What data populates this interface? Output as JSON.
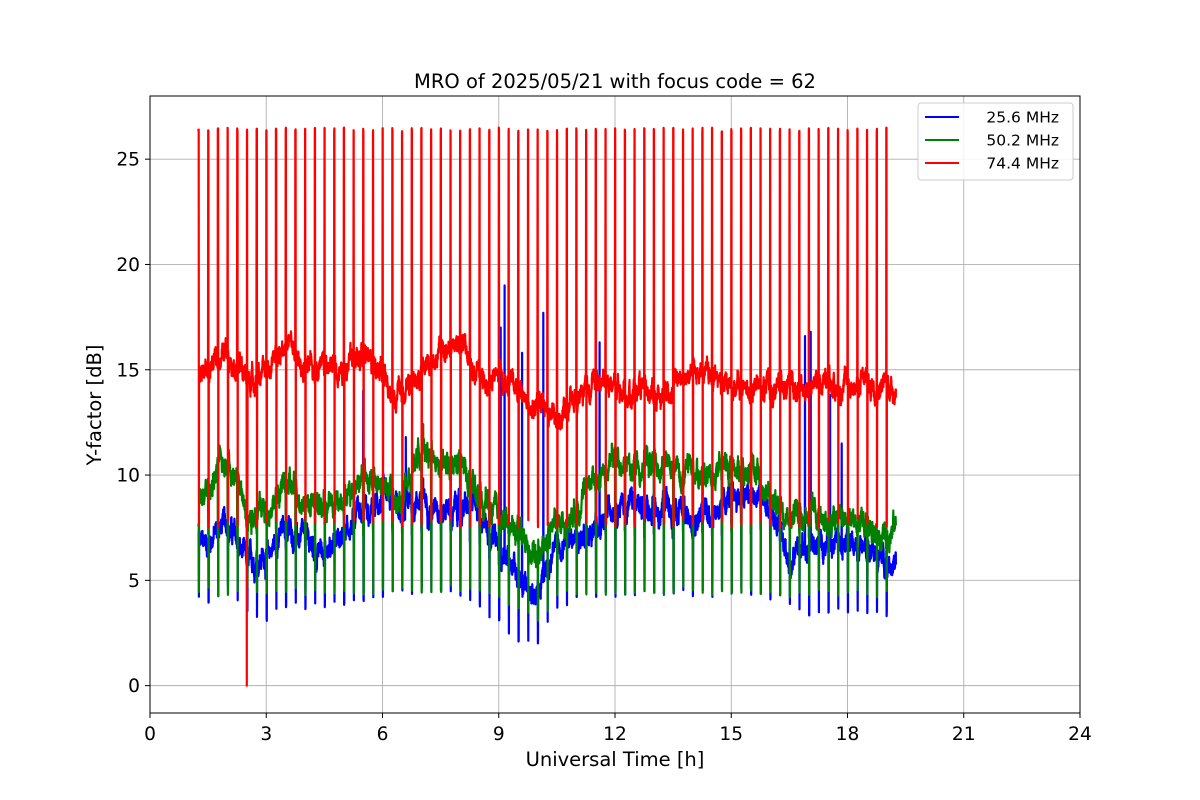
{
  "chart_data": {
    "type": "line",
    "title": "MRO of 2025/05/21 with focus code = 62",
    "xlabel": "Universal Time [h]",
    "ylabel": "Y-factor [dB]",
    "xlim": [
      0,
      24
    ],
    "ylim": [
      -1.3,
      28
    ],
    "xticks": [
      "0",
      "3",
      "6",
      "9",
      "12",
      "15",
      "18",
      "21",
      "24"
    ],
    "yticks": [
      "0",
      "5",
      "10",
      "15",
      "20",
      "25"
    ],
    "grid": true,
    "legend_position": "top-right",
    "data_range_hours": [
      1.25,
      19.25
    ],
    "calibration_pulse_interval_h": 0.25,
    "series": [
      {
        "name": "25.6 MHz",
        "color": "#0000ff",
        "x": [
          1.25,
          1.5,
          2.0,
          2.5,
          3.0,
          3.5,
          4.0,
          4.5,
          5.0,
          5.5,
          6.0,
          6.5,
          7.0,
          7.5,
          8.0,
          8.5,
          9.0,
          9.5,
          10.0,
          10.5,
          11.0,
          11.5,
          12.0,
          12.5,
          13.0,
          13.5,
          14.0,
          14.5,
          15.0,
          15.5,
          16.0,
          16.5,
          17.0,
          17.5,
          18.0,
          18.5,
          19.0,
          19.25
        ],
        "baseline": [
          6.6,
          6.9,
          7.8,
          5.8,
          6.2,
          7.5,
          6.8,
          6.4,
          7.2,
          8.2,
          8.8,
          8.3,
          9.0,
          8.0,
          8.5,
          8.2,
          6.5,
          5.5,
          4.3,
          6.5,
          7.0,
          7.5,
          8.8,
          8.5,
          8.5,
          8.2,
          8.0,
          8.4,
          9.0,
          9.0,
          8.4,
          6.0,
          6.5,
          7.0,
          6.8,
          6.3,
          6.0,
          5.9
        ],
        "pulse_min": [
          4.1,
          3.8,
          4.4,
          3.5,
          3.0,
          3.6,
          3.6,
          3.5,
          3.8,
          4.0,
          4.2,
          4.3,
          4.4,
          4.4,
          4.2,
          3.5,
          2.8,
          2.0,
          1.8,
          3.5,
          4.0,
          4.2,
          4.2,
          4.2,
          4.3,
          4.3,
          4.2,
          4.2,
          4.3,
          4.3,
          4.0,
          3.8,
          3.2,
          3.3,
          3.4,
          3.3,
          3.2,
          3.2
        ],
        "spikes": [
          {
            "x": 5.5,
            "y": 14.0
          },
          {
            "x": 6.6,
            "y": 11.8
          },
          {
            "x": 9.05,
            "y": 17.0
          },
          {
            "x": 9.15,
            "y": 19.0
          },
          {
            "x": 9.6,
            "y": 15.8
          },
          {
            "x": 10.15,
            "y": 17.7
          },
          {
            "x": 11.6,
            "y": 16.3
          },
          {
            "x": 16.9,
            "y": 16.6
          },
          {
            "x": 17.05,
            "y": 16.8
          },
          {
            "x": 17.55,
            "y": 13.8
          },
          {
            "x": 17.85,
            "y": 11.5
          }
        ]
      },
      {
        "name": "50.2 MHz",
        "color": "#008000",
        "x": [
          1.25,
          1.5,
          2.0,
          2.5,
          3.0,
          3.5,
          4.0,
          4.5,
          5.0,
          5.5,
          6.0,
          6.5,
          7.0,
          7.5,
          8.0,
          8.5,
          9.0,
          9.5,
          10.0,
          10.5,
          11.0,
          11.5,
          12.0,
          12.5,
          13.0,
          13.5,
          14.0,
          14.5,
          15.0,
          15.5,
          16.0,
          16.5,
          17.0,
          17.5,
          18.0,
          18.5,
          19.0,
          19.25
        ],
        "baseline": [
          8.4,
          9.3,
          11.0,
          8.2,
          8.4,
          9.6,
          8.8,
          8.5,
          9.0,
          9.9,
          9.5,
          8.8,
          11.5,
          10.3,
          10.5,
          9.0,
          8.0,
          7.2,
          6.2,
          7.5,
          8.5,
          9.8,
          10.8,
          10.5,
          10.5,
          10.3,
          10.3,
          10.2,
          10.4,
          10.3,
          8.8,
          8.3,
          8.1,
          8.0,
          7.8,
          7.3,
          7.2,
          7.6
        ],
        "pulse_min": [
          4.4,
          4.3,
          4.2,
          4.4,
          4.3,
          4.3,
          4.3,
          4.3,
          4.3,
          4.3,
          4.3,
          4.3,
          4.4,
          4.4,
          4.4,
          4.3,
          4.2,
          3.5,
          3.0,
          4.0,
          4.2,
          4.3,
          4.3,
          4.3,
          4.3,
          4.3,
          4.3,
          4.3,
          4.3,
          4.3,
          4.3,
          4.2,
          4.2,
          4.2,
          4.2,
          4.2,
          4.2,
          4.2
        ],
        "spikes": []
      },
      {
        "name": "74.4 MHz",
        "color": "#ff0000",
        "x": [
          1.25,
          1.5,
          2.0,
          2.5,
          3.0,
          3.5,
          4.0,
          4.5,
          5.0,
          5.5,
          6.0,
          6.5,
          7.0,
          7.5,
          8.0,
          8.5,
          9.0,
          9.5,
          10.0,
          10.5,
          11.0,
          11.5,
          12.0,
          12.5,
          13.0,
          13.5,
          14.0,
          14.5,
          15.0,
          15.5,
          16.0,
          16.5,
          17.0,
          17.5,
          18.0,
          18.5,
          19.0,
          19.25
        ],
        "baseline": [
          14.8,
          15.0,
          16.0,
          14.5,
          14.8,
          16.5,
          14.9,
          14.9,
          15.3,
          15.7,
          14.6,
          13.8,
          14.8,
          15.8,
          16.4,
          14.5,
          14.6,
          14.0,
          13.2,
          12.6,
          13.5,
          14.5,
          14.3,
          14.0,
          13.9,
          14.0,
          15.0,
          14.5,
          14.3,
          14.0,
          14.0,
          14.3,
          14.3,
          14.2,
          14.3,
          14.3,
          14.3,
          14.1
        ],
        "pulse_max": 26.5,
        "pulse_min": 7.5,
        "spikes": [
          {
            "x": 2.5,
            "y": 0.0
          }
        ]
      }
    ]
  }
}
